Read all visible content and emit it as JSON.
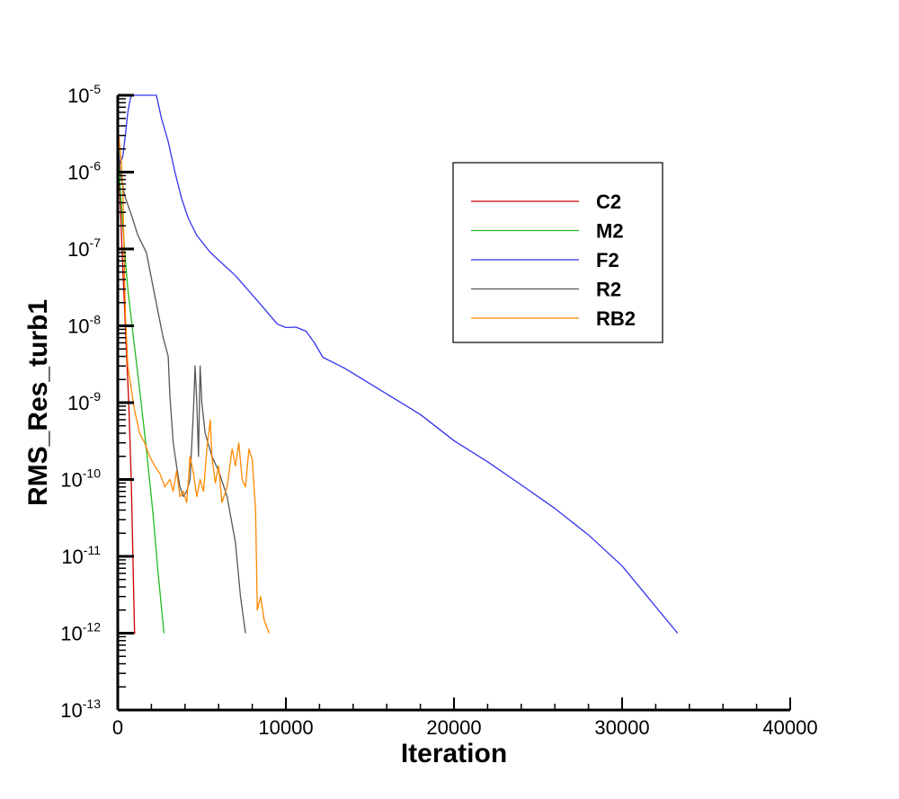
{
  "chart_data": {
    "type": "line",
    "xlabel": "Iteration",
    "ylabel": "RMS_Res_turb1",
    "xlim": [
      0,
      40000
    ],
    "ylim_log10": [
      -13,
      -5
    ],
    "y_scale": "log",
    "x_ticks": [
      0,
      10000,
      20000,
      30000,
      40000
    ],
    "x_tick_labels": [
      "0",
      "10000",
      "20000",
      "30000",
      "40000"
    ],
    "y_ticks_exp": [
      -5,
      -6,
      -7,
      -8,
      -9,
      -10,
      -11,
      -12,
      -13
    ],
    "y_tick_base": "10",
    "y_tick_exponents": [
      "-5",
      "-6",
      "-7",
      "-8",
      "-9",
      "-10",
      "-11",
      "-12",
      "-13"
    ],
    "legend_position": "top-right",
    "grid": false,
    "series": [
      {
        "name": "C2",
        "color": "#cc0000",
        "points": [
          [
            0,
            2e-06
          ],
          [
            100,
            8e-07
          ],
          [
            250,
            1e-07
          ],
          [
            450,
            1e-08
          ],
          [
            650,
            1e-09
          ],
          [
            800,
            1e-10
          ],
          [
            900,
            1e-11
          ],
          [
            1000,
            1e-12
          ],
          [
            1050,
            1e-12
          ]
        ]
      },
      {
        "name": "M2",
        "color": "#22bb22",
        "points": [
          [
            0,
            2e-06
          ],
          [
            150,
            6e-07
          ],
          [
            400,
            1e-07
          ],
          [
            600,
            3e-08
          ],
          [
            900,
            8e-09
          ],
          [
            1300,
            1.5e-09
          ],
          [
            1700,
            2.5e-10
          ],
          [
            2100,
            3.5e-11
          ],
          [
            2400,
            6e-12
          ],
          [
            2750,
            1e-12
          ]
        ]
      },
      {
        "name": "F2",
        "color": "#3333ee",
        "points": [
          [
            0,
            2e-06
          ],
          [
            150,
            1.3e-06
          ],
          [
            300,
            1.6e-06
          ],
          [
            450,
            3e-06
          ],
          [
            600,
            6e-06
          ],
          [
            700,
            8e-06
          ],
          [
            800,
            1e-05
          ],
          [
            2300,
            1e-05
          ],
          [
            2600,
            5e-06
          ],
          [
            3000,
            2.5e-06
          ],
          [
            3400,
            1e-06
          ],
          [
            3800,
            4.5e-07
          ],
          [
            4200,
            2.5e-07
          ],
          [
            4700,
            1.5e-07
          ],
          [
            5500,
            9e-08
          ],
          [
            7000,
            4.5e-08
          ],
          [
            8500,
            1.9e-08
          ],
          [
            9500,
            1.05e-08
          ],
          [
            10000,
            9.5e-09
          ],
          [
            10600,
            9.6e-09
          ],
          [
            11200,
            8.5e-09
          ],
          [
            11700,
            6e-09
          ],
          [
            12200,
            3.9e-09
          ],
          [
            13500,
            2.8e-09
          ],
          [
            16000,
            1.3e-09
          ],
          [
            18000,
            7e-10
          ],
          [
            20000,
            3.2e-10
          ],
          [
            20200,
            3e-10
          ],
          [
            22000,
            1.7e-10
          ],
          [
            24000,
            8.5e-11
          ],
          [
            26000,
            4.2e-11
          ],
          [
            28000,
            1.9e-11
          ],
          [
            30000,
            7.5e-12
          ],
          [
            31500,
            3e-12
          ],
          [
            33300,
            1e-12
          ]
        ]
      },
      {
        "name": "R2",
        "color": "#555555",
        "points": [
          [
            0,
            3e-06
          ],
          [
            150,
            1e-06
          ],
          [
            400,
            5e-07
          ],
          [
            800,
            2.8e-07
          ],
          [
            1200,
            1.5e-07
          ],
          [
            1700,
            9e-08
          ],
          [
            2200,
            2.5e-08
          ],
          [
            2700,
            7e-09
          ],
          [
            3000,
            4e-09
          ],
          [
            3100,
            1.2e-09
          ],
          [
            3300,
            3e-10
          ],
          [
            3500,
            1.5e-10
          ],
          [
            3700,
            8e-11
          ],
          [
            3900,
            6e-11
          ],
          [
            4100,
            7e-11
          ],
          [
            4300,
            1e-10
          ],
          [
            4500,
            8e-10
          ],
          [
            4600,
            3e-09
          ],
          [
            4700,
            1e-09
          ],
          [
            4800,
            2e-10
          ],
          [
            4900,
            3e-09
          ],
          [
            5000,
            1e-09
          ],
          [
            5200,
            4e-10
          ],
          [
            5600,
            2e-10
          ],
          [
            6000,
            1.3e-10
          ],
          [
            6500,
            6e-11
          ],
          [
            7000,
            1.5e-11
          ],
          [
            7300,
            3e-12
          ],
          [
            7600,
            1e-12
          ]
        ]
      },
      {
        "name": "RB2",
        "color": "#ff8800",
        "points": [
          [
            0,
            4e-06
          ],
          [
            200,
            1.5e-06
          ],
          [
            300,
            6e-07
          ],
          [
            450,
            1.5e-08
          ],
          [
            600,
            3e-09
          ],
          [
            800,
            1.5e-09
          ],
          [
            1000,
            8e-10
          ],
          [
            1300,
            4e-10
          ],
          [
            1600,
            3e-10
          ],
          [
            1900,
            2e-10
          ],
          [
            2200,
            1.5e-10
          ],
          [
            2500,
            1.2e-10
          ],
          [
            2800,
            8e-11
          ],
          [
            3100,
            1e-10
          ],
          [
            3300,
            7e-11
          ],
          [
            3500,
            1.3e-10
          ],
          [
            3700,
            6e-11
          ],
          [
            3900,
            7e-11
          ],
          [
            4100,
            5e-11
          ],
          [
            4300,
            2e-10
          ],
          [
            4500,
            1.2e-10
          ],
          [
            4700,
            6e-11
          ],
          [
            4900,
            1e-10
          ],
          [
            5100,
            7e-11
          ],
          [
            5300,
            2.5e-10
          ],
          [
            5500,
            6e-10
          ],
          [
            5600,
            2e-10
          ],
          [
            5800,
            9e-11
          ],
          [
            6000,
            1.5e-10
          ],
          [
            6200,
            5e-11
          ],
          [
            6500,
            8e-11
          ],
          [
            6800,
            2.5e-10
          ],
          [
            7000,
            1.5e-10
          ],
          [
            7200,
            3e-10
          ],
          [
            7400,
            1e-10
          ],
          [
            7600,
            8e-11
          ],
          [
            7800,
            2.5e-10
          ],
          [
            8000,
            1.8e-10
          ],
          [
            8200,
            4e-11
          ],
          [
            8300,
            2e-12
          ],
          [
            8500,
            3e-12
          ],
          [
            8700,
            1.5e-12
          ],
          [
            9000,
            1e-12
          ]
        ]
      }
    ]
  }
}
